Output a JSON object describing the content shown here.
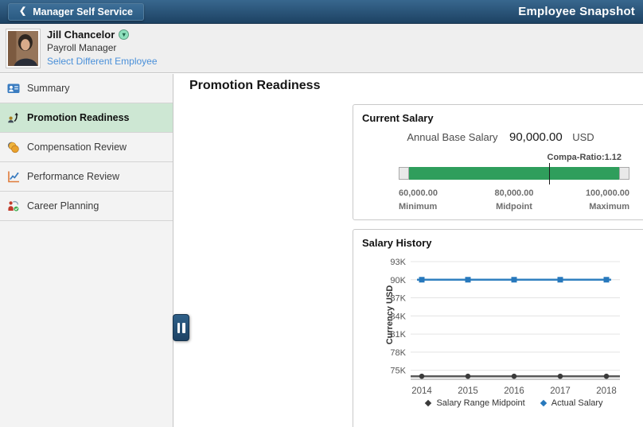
{
  "topbar": {
    "back_label": "Manager Self Service",
    "title": "Employee Snapshot"
  },
  "employee": {
    "name": "Jill Chancelor",
    "role": "Payroll Manager",
    "select_link": "Select Different Employee",
    "related_actions_icon": "chevron-down-badge"
  },
  "sidebar": {
    "items": [
      {
        "label": "Summary",
        "icon": "id-card-icon",
        "selected": false
      },
      {
        "label": "Promotion Readiness",
        "icon": "person-up-arrow-icon",
        "selected": true
      },
      {
        "label": "Compensation Review",
        "icon": "coins-icon",
        "selected": false
      },
      {
        "label": "Performance Review",
        "icon": "line-chart-icon",
        "selected": false
      },
      {
        "label": "Career Planning",
        "icon": "person-check-icon",
        "selected": false
      }
    ]
  },
  "page": {
    "heading": "Promotion Readiness"
  },
  "current_salary": {
    "title": "Current Salary",
    "label": "Annual Base Salary",
    "value": "90,000.00",
    "currency": "USD",
    "compa_ratio_label": "Compa-Ratio:1.12",
    "marker_percent": 65,
    "bar_color": "#2f9e5c",
    "min": {
      "value": "60,000.00",
      "label": "Minimum"
    },
    "mid": {
      "value": "80,000.00",
      "label": "Midpoint"
    },
    "max": {
      "value": "100,000.00",
      "label": "Maximum"
    }
  },
  "salary_history": {
    "title": "Salary History"
  },
  "chart_data": {
    "type": "line",
    "title": "Salary History",
    "x": [
      2014,
      2015,
      2016,
      2017,
      2018
    ],
    "series": [
      {
        "name": "Salary Range Midpoint",
        "values": [
          74000,
          74000,
          74000,
          74000,
          74000
        ],
        "color": "#5a5a5a",
        "marker": "circle",
        "marker_color": "#3a3a3a",
        "line_width": 2.5,
        "extend_full_width": true
      },
      {
        "name": "Actual Salary",
        "values": [
          90000,
          90000,
          90000,
          90000,
          90000
        ],
        "color": "#3080c0",
        "marker": "square",
        "marker_color": "#2778bc",
        "line_width": 2.5,
        "extend_full_width": false
      }
    ],
    "ylabel": "Currency USD",
    "xlabel": "",
    "yticks": [
      93000,
      90000,
      87000,
      84000,
      81000,
      78000,
      75000
    ],
    "ytick_labels": [
      "93K",
      "90K",
      "87K",
      "84K",
      "81K",
      "78K",
      "75K"
    ],
    "ylim": [
      73500,
      93000
    ],
    "grid": true,
    "legend_position": "bottom"
  },
  "colors": {
    "topbar_blue": "#1d4263",
    "selected_green": "#cde7d3",
    "bar_green": "#2f9e5c",
    "line_blue": "#3080c0",
    "link_blue": "#4a90d9",
    "gridline": "#e4e4e4",
    "axis_text": "#555555"
  }
}
